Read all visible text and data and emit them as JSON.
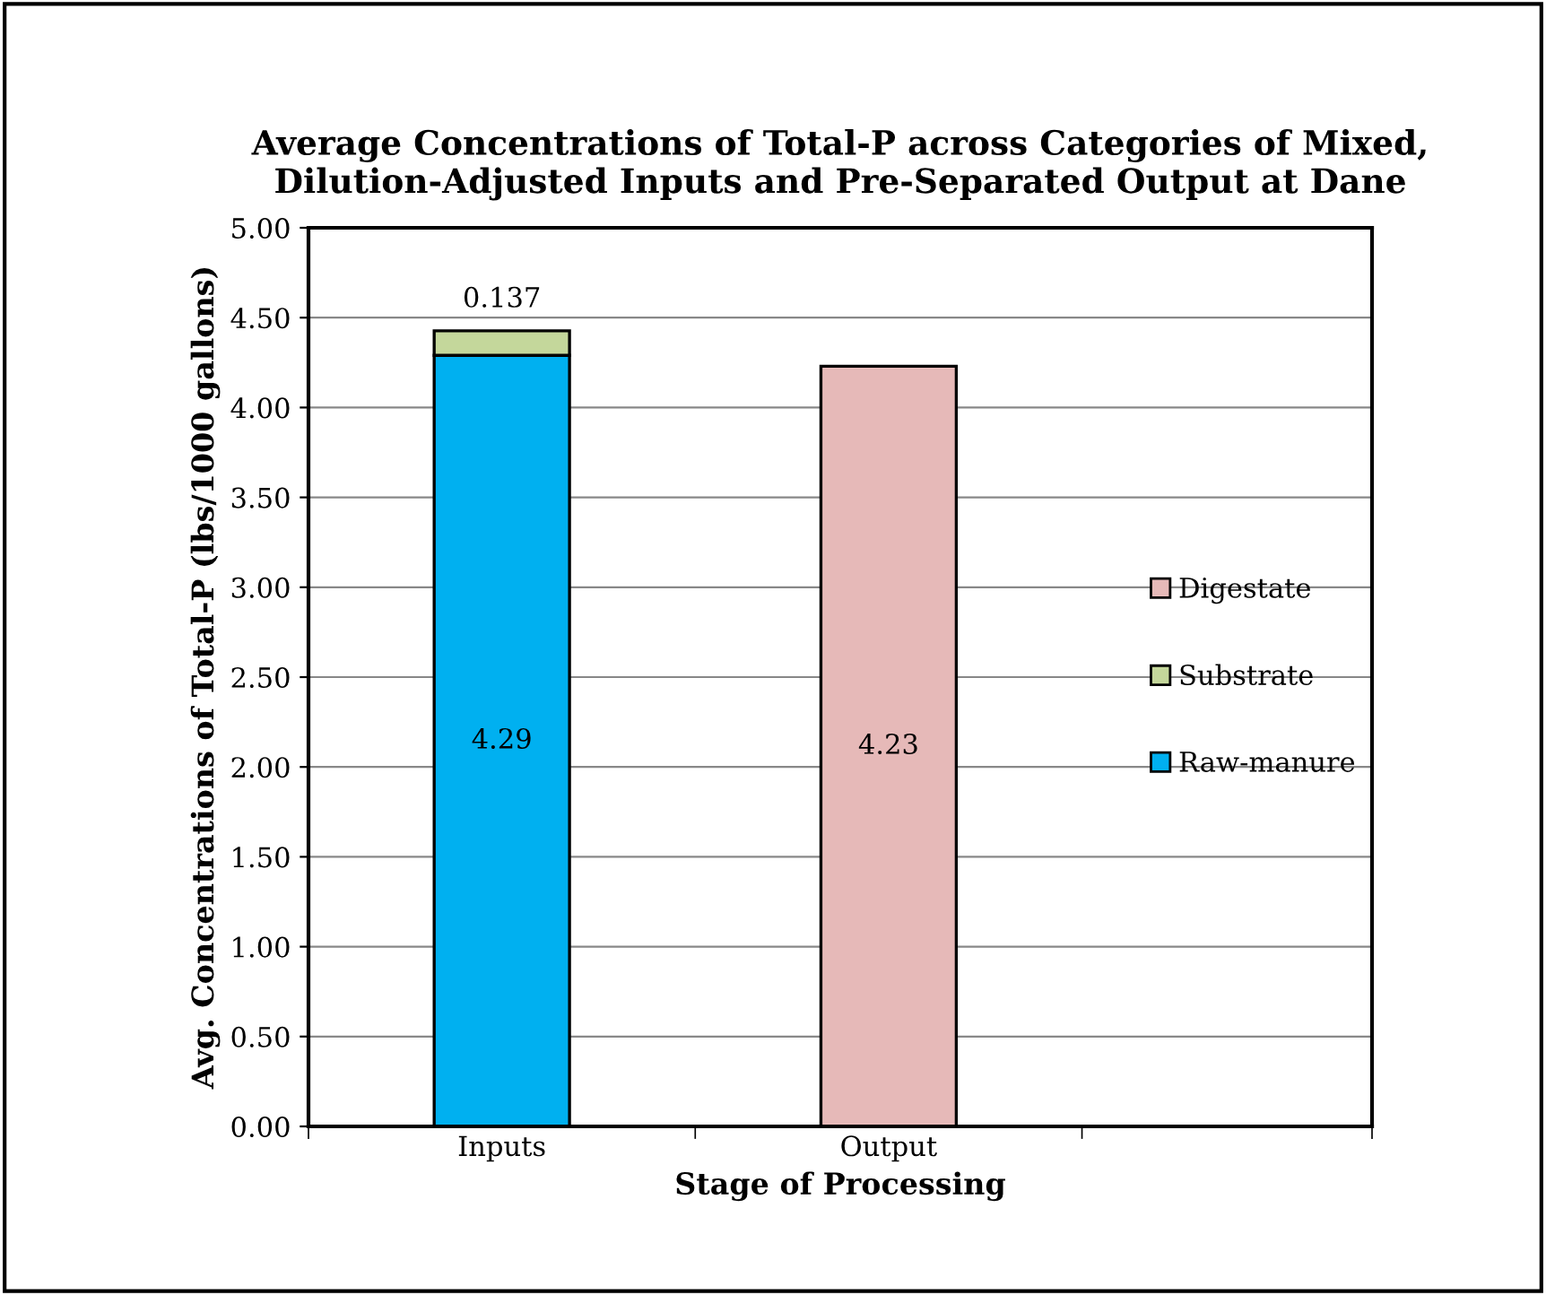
{
  "chart_data": {
    "type": "bar",
    "stacked": true,
    "title": "Average Concentrations of Total-P across Categories of Mixed,\nDilution-Adjusted Inputs and Pre-Separated Output at Dane",
    "xlabel": "Stage of Processing",
    "ylabel": "Avg. Concentrations of Total-P (lbs/1000 gallons)",
    "categories": [
      "Inputs",
      "Output"
    ],
    "series": [
      {
        "name": "Raw-manure",
        "color": "#00b0f0",
        "values": [
          4.29,
          null
        ]
      },
      {
        "name": "Substrate",
        "color": "#c4d79b",
        "values": [
          0.137,
          null
        ]
      },
      {
        "name": "Digestate",
        "color": "#e6b9b8",
        "values": [
          null,
          4.23
        ]
      }
    ],
    "ylim": [
      0,
      5
    ],
    "yticks": [
      {
        "value": 0,
        "label": "0.00"
      },
      {
        "value": 0.5,
        "label": "0.50"
      },
      {
        "value": 1,
        "label": "1.00"
      },
      {
        "value": 1.5,
        "label": "1.50"
      },
      {
        "value": 2,
        "label": "2.00"
      },
      {
        "value": 2.5,
        "label": "2.50"
      },
      {
        "value": 3,
        "label": "3.00"
      },
      {
        "value": 3.5,
        "label": "3.50"
      },
      {
        "value": 4,
        "label": "4.00"
      },
      {
        "value": 4.5,
        "label": "4.50"
      },
      {
        "value": 5,
        "label": "5.00"
      }
    ],
    "grid": "y",
    "legend": "right",
    "data_labels": true
  }
}
